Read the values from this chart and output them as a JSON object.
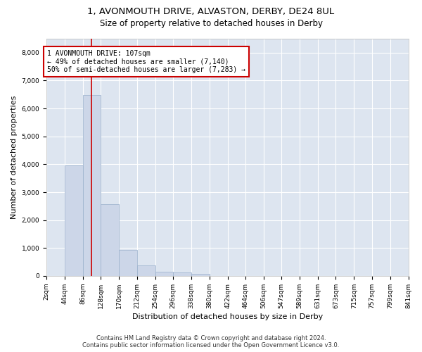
{
  "title_line1": "1, AVONMOUTH DRIVE, ALVASTON, DERBY, DE24 8UL",
  "title_line2": "Size of property relative to detached houses in Derby",
  "xlabel": "Distribution of detached houses by size in Derby",
  "ylabel": "Number of detached properties",
  "bar_color": "#ccd6e8",
  "bar_edge_color": "#9ab0cc",
  "background_color": "#dde5f0",
  "grid_color": "#ffffff",
  "annotation_box_edgecolor": "#cc0000",
  "annotation_line1": "1 AVONMOUTH DRIVE: 107sqm",
  "annotation_line2": "← 49% of detached houses are smaller (7,140)",
  "annotation_line3": "50% of semi-detached houses are larger (7,283) →",
  "vline_x": 107,
  "vline_color": "#cc0000",
  "footer_line1": "Contains HM Land Registry data © Crown copyright and database right 2024.",
  "footer_line2": "Contains public sector information licensed under the Open Government Licence v3.0.",
  "bin_edges": [
    2,
    44,
    86,
    128,
    170,
    212,
    254,
    296,
    338,
    380,
    422,
    464,
    506,
    547,
    589,
    631,
    673,
    715,
    757,
    799,
    841
  ],
  "bin_counts": [
    3,
    3950,
    6480,
    2580,
    930,
    380,
    150,
    130,
    75,
    0,
    0,
    0,
    0,
    0,
    0,
    0,
    0,
    0,
    0,
    0
  ],
  "ylim": [
    0,
    8500
  ],
  "yticks": [
    0,
    1000,
    2000,
    3000,
    4000,
    5000,
    6000,
    7000,
    8000
  ],
  "title_fontsize": 9.5,
  "subtitle_fontsize": 8.5,
  "tick_label_fontsize": 6.5,
  "ylabel_fontsize": 8,
  "xlabel_fontsize": 8,
  "annotation_fontsize": 7,
  "footer_fontsize": 6
}
